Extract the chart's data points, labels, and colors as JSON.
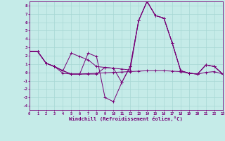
{
  "xlabel": "Windchill (Refroidissement éolien,°C)",
  "xlim": [
    0,
    23
  ],
  "ylim": [
    -4.5,
    8.5
  ],
  "xticks": [
    0,
    1,
    2,
    3,
    4,
    5,
    6,
    7,
    8,
    9,
    10,
    11,
    12,
    13,
    14,
    15,
    16,
    17,
    18,
    19,
    20,
    21,
    22,
    23
  ],
  "yticks": [
    -4,
    -3,
    -2,
    -1,
    0,
    1,
    2,
    3,
    4,
    5,
    6,
    7,
    8
  ],
  "bg_color": "#c5ebe8",
  "grid_color": "#a8d8d4",
  "line_color": "#770077",
  "lines": [
    [
      2.5,
      2.5,
      1.1,
      0.7,
      -0.1,
      -0.2,
      -0.2,
      -0.15,
      -0.1,
      -0.05,
      0.0,
      0.05,
      0.1,
      0.15,
      0.2,
      0.2,
      0.2,
      0.15,
      0.1,
      -0.1,
      -0.2,
      0.0,
      0.1,
      -0.2
    ],
    [
      2.5,
      2.5,
      1.1,
      0.7,
      0.2,
      2.3,
      1.9,
      1.5,
      0.7,
      0.6,
      0.5,
      0.4,
      0.3,
      6.2,
      8.5,
      6.8,
      6.5,
      3.5,
      0.2,
      -0.1,
      -0.2,
      0.9,
      0.7,
      -0.2
    ],
    [
      2.5,
      2.5,
      1.1,
      0.7,
      0.2,
      -0.2,
      -0.2,
      2.3,
      1.9,
      -3.0,
      -3.5,
      -1.2,
      0.7,
      6.2,
      8.5,
      6.8,
      6.5,
      3.5,
      0.2,
      -0.1,
      -0.2,
      0.9,
      0.7,
      -0.2
    ],
    [
      2.5,
      2.5,
      1.1,
      0.7,
      0.2,
      -0.2,
      -0.2,
      -0.2,
      -0.2,
      0.6,
      0.5,
      -1.2,
      0.7,
      6.2,
      8.5,
      6.8,
      6.5,
      3.5,
      0.2,
      -0.1,
      -0.2,
      0.9,
      0.7,
      -0.2
    ]
  ]
}
